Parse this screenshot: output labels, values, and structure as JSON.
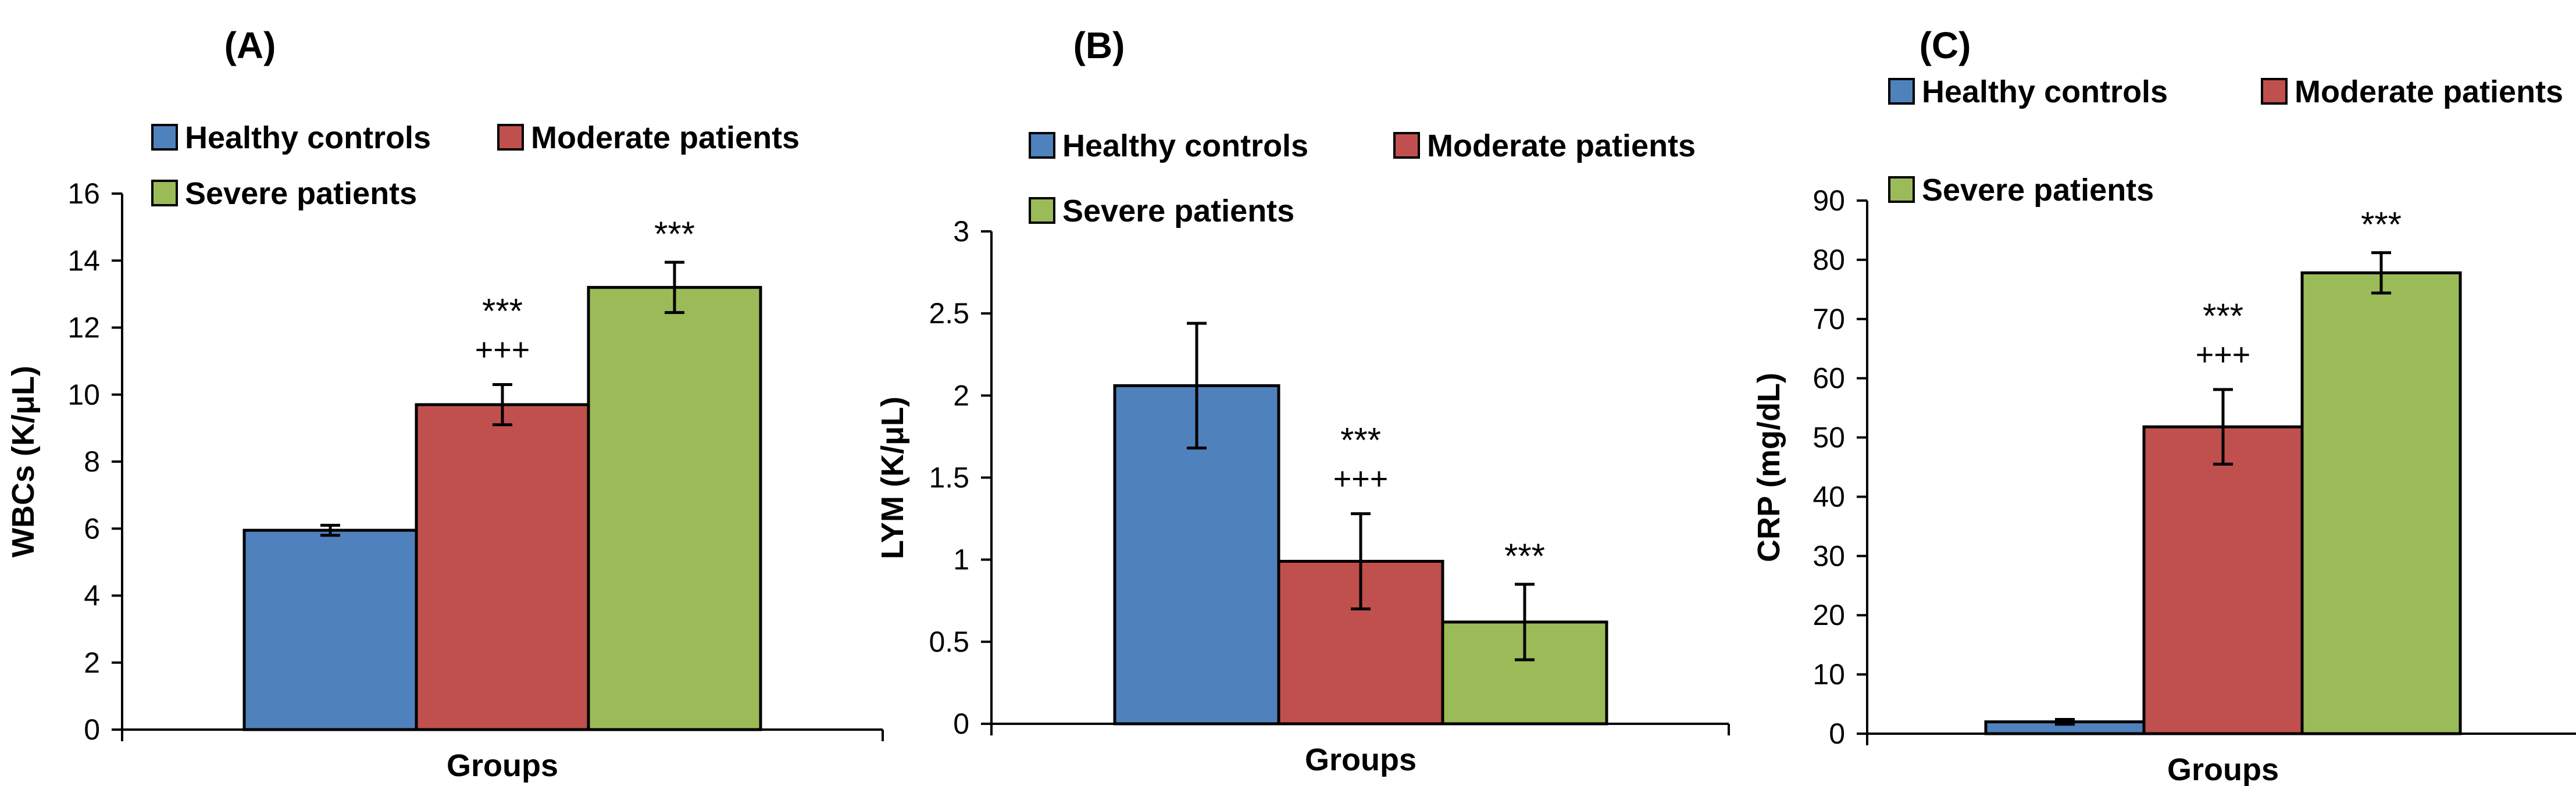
{
  "series_colors": [
    "#4f81bd",
    "#c0504d",
    "#9bbb59"
  ],
  "chart_data": [
    {
      "type": "bar",
      "panel_label": "(A)",
      "ylabel": "WBCs (K/μL)",
      "xlabel": "Groups",
      "ylim": [
        0,
        16
      ],
      "yticks": [
        0,
        2,
        4,
        6,
        8,
        10,
        12,
        14,
        16
      ],
      "legend_position": "top-left",
      "categories": [
        "Groups"
      ],
      "series": [
        {
          "name": "Healthy controls",
          "value": 5.95,
          "error": 0.15,
          "annotations": []
        },
        {
          "name": "Moderate patients",
          "value": 9.7,
          "error": 0.6,
          "annotations": [
            "***",
            "+++"
          ]
        },
        {
          "name": "Severe patients",
          "value": 13.2,
          "error": 0.75,
          "annotations": [
            "***"
          ]
        }
      ]
    },
    {
      "type": "bar",
      "panel_label": "(B)",
      "ylabel": "LYM (K/μL)",
      "xlabel": "Groups",
      "ylim": [
        0,
        3
      ],
      "yticks": [
        "0",
        "0.5",
        "1",
        "1.5",
        "2",
        "2.5",
        "3"
      ],
      "legend_position": "top-left",
      "categories": [
        "Groups"
      ],
      "series": [
        {
          "name": "Healthy controls",
          "value": 2.06,
          "error": 0.38,
          "annotations": []
        },
        {
          "name": "Moderate patients",
          "value": 0.99,
          "error": 0.29,
          "annotations": [
            "***",
            "+++"
          ]
        },
        {
          "name": "Severe patients",
          "value": 0.62,
          "error": 0.23,
          "annotations": [
            "***"
          ]
        }
      ]
    },
    {
      "type": "bar",
      "panel_label": "(C)",
      "ylabel": "CRP (mg/dL)",
      "xlabel": "Groups",
      "ylim": [
        0,
        90
      ],
      "yticks": [
        0,
        10,
        20,
        30,
        40,
        50,
        60,
        70,
        80,
        90
      ],
      "legend_position": "top-left",
      "categories": [
        "Groups"
      ],
      "series": [
        {
          "name": "Healthy controls",
          "value": 2.0,
          "error": 0.4,
          "annotations": []
        },
        {
          "name": "Moderate patients",
          "value": 51.8,
          "error": 6.3,
          "annotations": [
            "***",
            "+++"
          ]
        },
        {
          "name": "Severe patients",
          "value": 77.8,
          "error": 3.4,
          "annotations": [
            "***"
          ]
        }
      ]
    }
  ]
}
